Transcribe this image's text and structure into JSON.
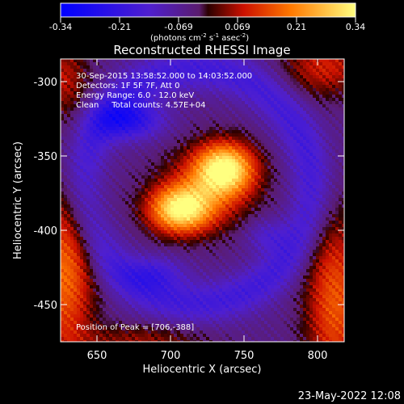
{
  "chart_data": {
    "type": "heatmap",
    "title": "Reconstructed RHESSI Image",
    "xlabel": "Heliocentric X (arcsec)",
    "ylabel": "Heliocentric Y (arcsec)",
    "xlim": [
      625,
      818
    ],
    "ylim": [
      -476,
      -287
    ],
    "x_ticks": [
      650,
      700,
      750,
      800
    ],
    "y_ticks": [
      -300,
      -350,
      -400,
      -450
    ],
    "colorbar": {
      "range": [
        -0.34,
        0.34
      ],
      "ticks": [
        "-0.34",
        "-0.21",
        "-0.069",
        "0.069",
        "0.21",
        "0.34"
      ],
      "unit_prefix": "(photons cm",
      "unit_exp1": "-2",
      "unit_mid": " s",
      "unit_exp2": "-1",
      "unit_mid2": " asec",
      "unit_exp3": "-2",
      "unit_suffix": ")"
    },
    "annotations": [
      "30-Sep-2015 13:58:52.000 to 14:03:52.000",
      "Detectors: 1F 5F 7F, Att 0",
      "Energy Range: 6.0 - 12.0 keV",
      "Clean     Total counts: 4.57E+04"
    ],
    "peak_label": "Position of Peak = [706,-388]",
    "footer_date": "23-May-2022 12:08",
    "grid": false,
    "sources": [
      {
        "x": 737,
        "y": -360,
        "value": 0.34
      },
      {
        "x": 706,
        "y": -388,
        "value": 0.34
      }
    ]
  }
}
